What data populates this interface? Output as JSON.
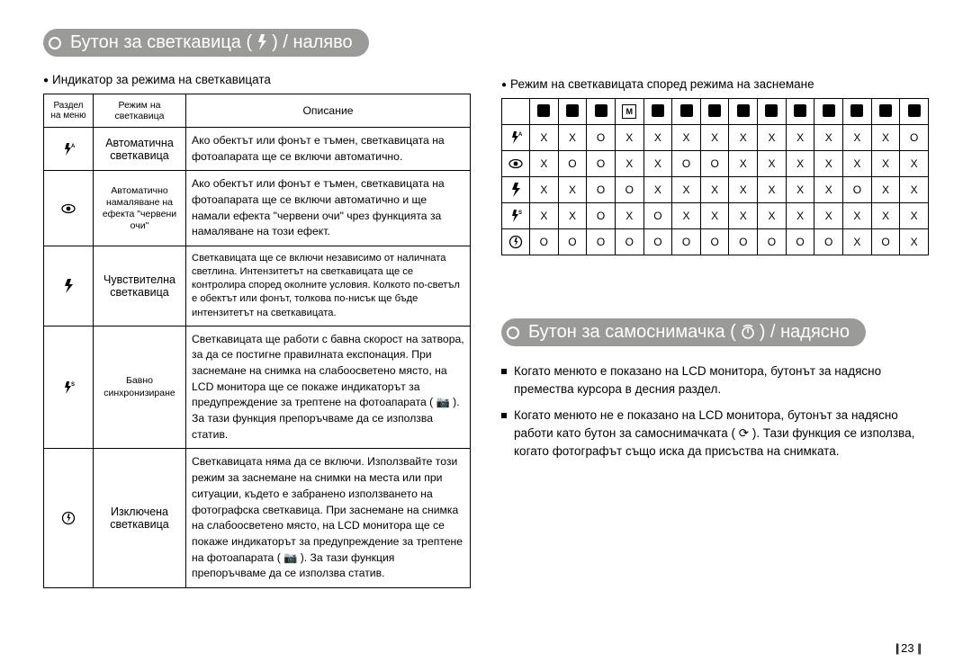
{
  "left": {
    "heading_a": "Бутон за светкавица (",
    "heading_b": ") / наляво",
    "subhead": "Индикатор за режима на светкавицата",
    "table": {
      "cols": [
        "Раздел на меню",
        "Режим на светкавица",
        "Описание"
      ],
      "rows": [
        {
          "icon": "flash-auto",
          "mode": "Автоматична светкавица",
          "mode_class": "",
          "desc": "Ако обектът или фонът е тъмен, светкавицата на фотоапарата ще се включи автоматично.",
          "desc_class": ""
        },
        {
          "icon": "red-eye",
          "mode": "Автоматично намаляване на ефекта \"червени очи\"",
          "mode_class": "sm",
          "desc": "Ако обектът или фонът е тъмен, светкавицата на фотоапарата ще се включи автоматично и ще намали ефекта \"червени очи\" чрез функцията за намаляване на този ефект.",
          "desc_class": ""
        },
        {
          "icon": "flash",
          "mode": "Чувствителна светкавица",
          "mode_class": "",
          "desc": "Светкавицата ще се включи независимо от наличната светлина. Интензитетът на светкавицата ще се контролира според околните условия. Колкото по-светъл е обектът или фонът, толкова по-нисък ще бъде интензитетът на светкавицата.",
          "desc_class": "sm"
        },
        {
          "icon": "flash-slow",
          "mode": "Бавно синхронизиране",
          "mode_class": "sm",
          "desc": "Светкавицата ще работи с бавна скорост на затвора, за да се постигне правилната експонация. При заснемане на снимка на слабоосветено място, на LCD монитора ще се покаже индикаторът за предупреждение за трептене на фотоапарата ( 📷 ). За тази функция препоръчваме да се използва статив.",
          "desc_class": ""
        },
        {
          "icon": "flash-off",
          "mode": "Изключена светкавица",
          "mode_class": "",
          "desc": "Светкавицата няма да се включи. Използвайте този режим за заснемане на снимки на места или при ситуации, където е забранено използването на фотографска светкавица. При заснемане на снимка на слабоосветено място, на LCD монитора ще се покаже индикаторът за предупреждение за трептене на фотоапарата ( 📷 ). За тази функция препоръчваме да се използва статив.",
          "desc_class": ""
        }
      ]
    }
  },
  "right": {
    "subhead": "Режим на светкавицата според режима на заснемане",
    "matrix": {
      "col_icons": [
        "cam-a",
        "cam",
        "cam-p",
        "M",
        "moon",
        "q1",
        "q2",
        "mtn",
        "q3",
        "q4",
        "q5",
        "q6",
        "sun",
        "q7"
      ],
      "row_icons": [
        "flash-auto",
        "red-eye",
        "flash",
        "flash-slow",
        "flash-off"
      ],
      "cells": [
        [
          "X",
          "X",
          "O",
          "X",
          "X",
          "X",
          "X",
          "X",
          "X",
          "X",
          "X",
          "X",
          "X",
          "O"
        ],
        [
          "X",
          "O",
          "O",
          "X",
          "X",
          "O",
          "O",
          "X",
          "X",
          "X",
          "X",
          "X",
          "X",
          "X"
        ],
        [
          "X",
          "X",
          "O",
          "O",
          "X",
          "X",
          "X",
          "X",
          "X",
          "X",
          "X",
          "O",
          "X",
          "X"
        ],
        [
          "X",
          "X",
          "O",
          "X",
          "O",
          "X",
          "X",
          "X",
          "X",
          "X",
          "X",
          "X",
          "X",
          "X"
        ],
        [
          "O",
          "O",
          "O",
          "O",
          "O",
          "O",
          "O",
          "O",
          "O",
          "O",
          "O",
          "X",
          "O",
          "X"
        ]
      ]
    },
    "heading2_a": "Бутон за самоснимачка (",
    "heading2_b": ") / надясно",
    "paras": [
      "Когато менюто е показано на LCD монитора, бутонът за надясно премества курсора в десния раздел.",
      "Когато менюто не е показано на LCD монитора, бутонът за надясно работи като бутон за самоснимачката ( ⟳ ). Тази функция се използва, когато фотографът също иска да присъства на снимката."
    ]
  },
  "pagenum": "23"
}
